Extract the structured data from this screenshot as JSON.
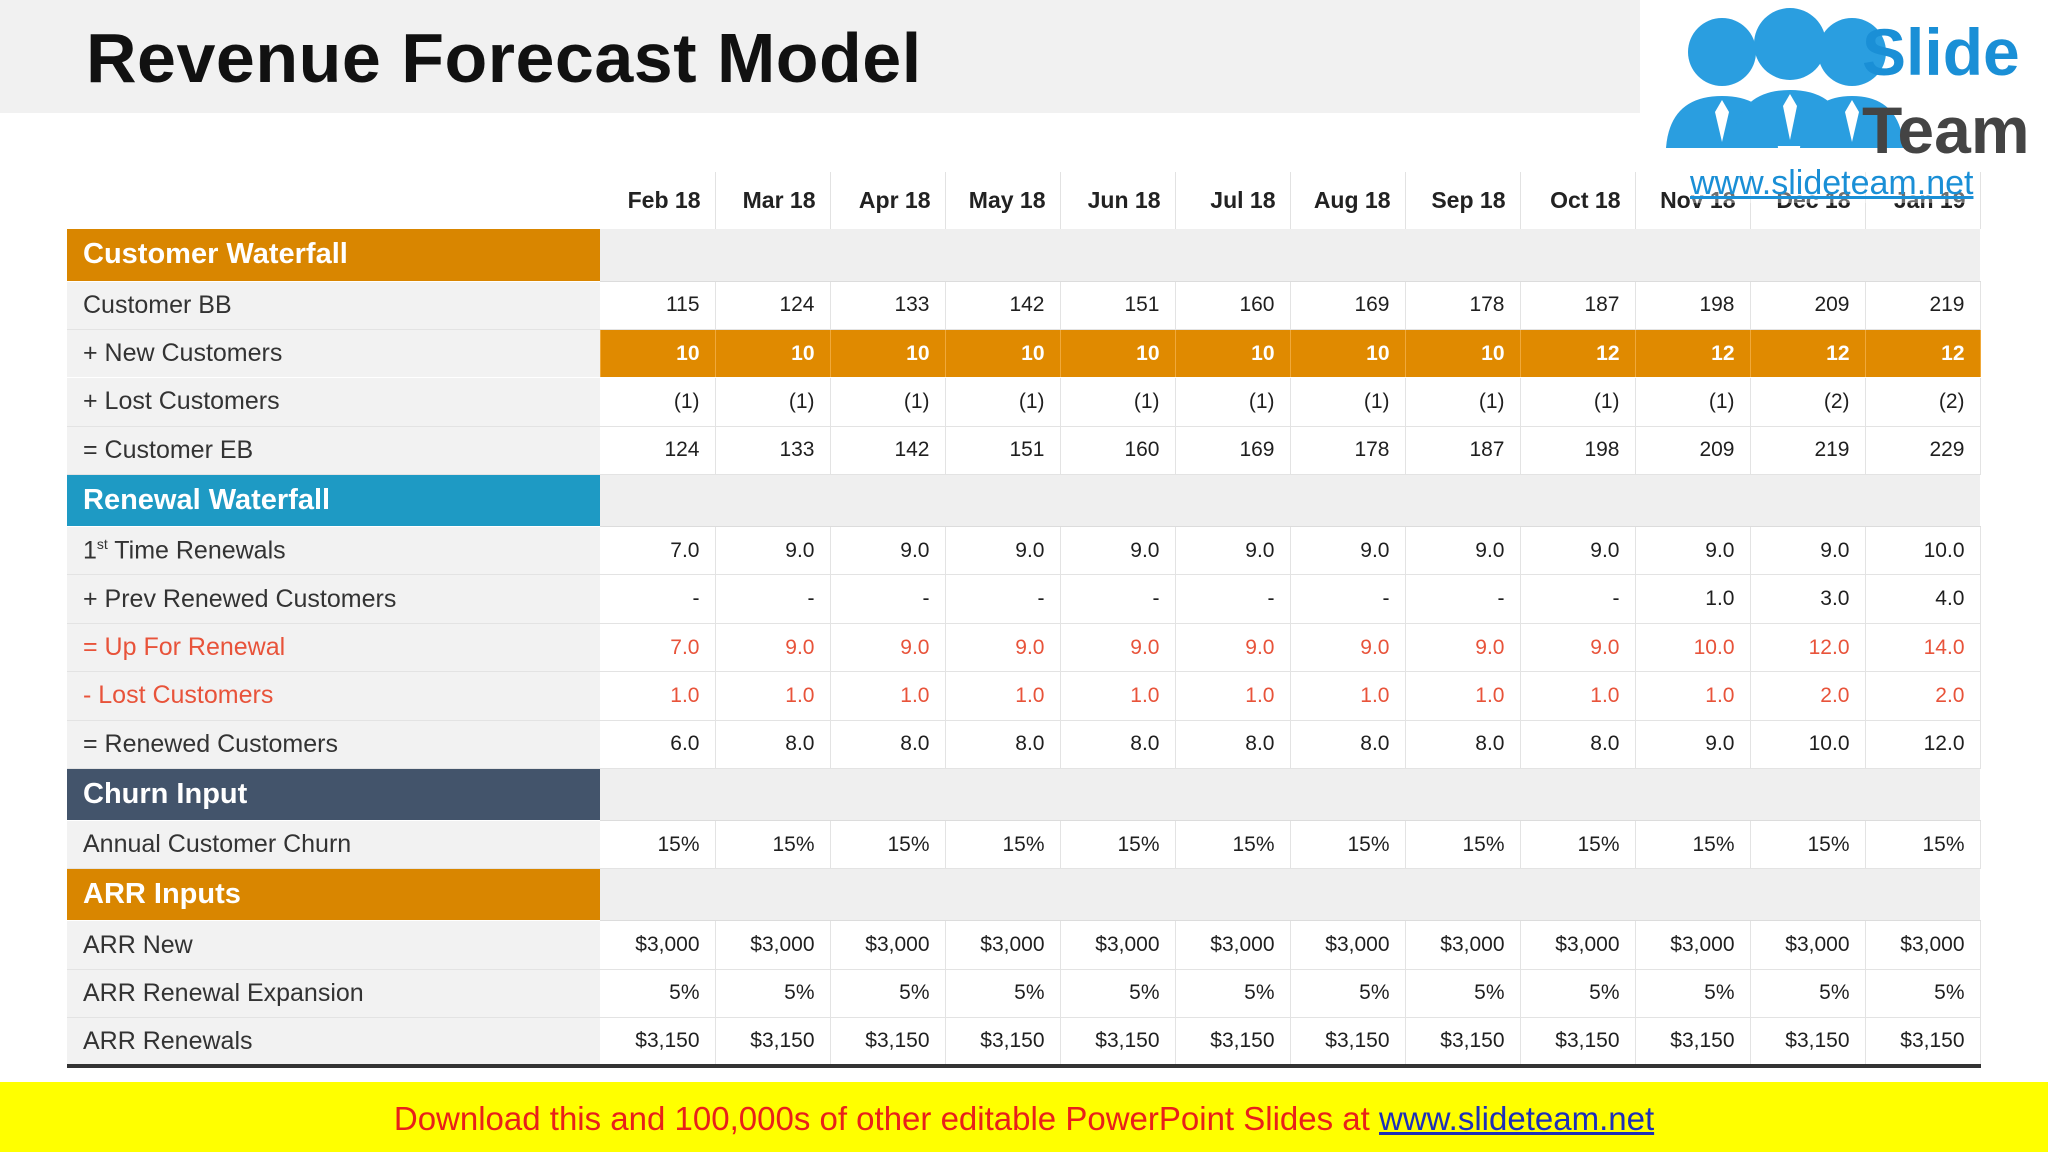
{
  "title": "Revenue Forecast Model",
  "logo": {
    "line1": "Slide",
    "line2": "Team",
    "url": "www.slideteam.net"
  },
  "months": [
    "Feb 18",
    "Mar 18",
    "Apr 18",
    "May 18",
    "Jun 18",
    "Jul 18",
    "Aug 18",
    "Sep 18",
    "Oct 18",
    "Nov 18",
    "Dec 18",
    "Jan 19"
  ],
  "sections": {
    "customer_waterfall": {
      "title": "Customer Waterfall",
      "color": "#d98600",
      "rows": {
        "customer_bb": {
          "label": "Customer BB",
          "values": [
            "115",
            "124",
            "133",
            "142",
            "151",
            "160",
            "169",
            "178",
            "187",
            "198",
            "209",
            "219"
          ]
        },
        "new_customers": {
          "label": "+ New Customers",
          "values": [
            "10",
            "10",
            "10",
            "10",
            "10",
            "10",
            "10",
            "10",
            "12",
            "12",
            "12",
            "12"
          ]
        },
        "lost_customers": {
          "label": "+ Lost Customers",
          "values": [
            "(1)",
            "(1)",
            "(1)",
            "(1)",
            "(1)",
            "(1)",
            "(1)",
            "(1)",
            "(1)",
            "(1)",
            "(2)",
            "(2)"
          ]
        },
        "customer_eb": {
          "label": "= Customer EB",
          "values": [
            "124",
            "133",
            "142",
            "151",
            "160",
            "169",
            "178",
            "187",
            "198",
            "209",
            "219",
            "229"
          ]
        }
      }
    },
    "renewal_waterfall": {
      "title": "Renewal Waterfall",
      "color": "#1e9ac4",
      "rows": {
        "first_time_renewals": {
          "label_pre": "1",
          "label_sup": "st",
          "label_post": " Time Renewals",
          "values": [
            "7.0",
            "9.0",
            "9.0",
            "9.0",
            "9.0",
            "9.0",
            "9.0",
            "9.0",
            "9.0",
            "9.0",
            "9.0",
            "10.0"
          ]
        },
        "prev_renewed": {
          "label": "+ Prev Renewed Customers",
          "values": [
            "-",
            "-",
            "-",
            "-",
            "-",
            "-",
            "-",
            "-",
            "-",
            "1.0",
            "3.0",
            "4.0"
          ]
        },
        "up_for_renewal": {
          "label": "= Up For Renewal",
          "values": [
            "7.0",
            "9.0",
            "9.0",
            "9.0",
            "9.0",
            "9.0",
            "9.0",
            "9.0",
            "9.0",
            "10.0",
            "12.0",
            "14.0"
          ]
        },
        "lost_customers": {
          "label": "- Lost Customers",
          "values": [
            "1.0",
            "1.0",
            "1.0",
            "1.0",
            "1.0",
            "1.0",
            "1.0",
            "1.0",
            "1.0",
            "1.0",
            "2.0",
            "2.0"
          ]
        },
        "renewed_customers": {
          "label": "= Renewed Customers",
          "values": [
            "6.0",
            "8.0",
            "8.0",
            "8.0",
            "8.0",
            "8.0",
            "8.0",
            "8.0",
            "8.0",
            "9.0",
            "10.0",
            "12.0"
          ]
        }
      }
    },
    "churn_input": {
      "title": "Churn Input",
      "color": "#43546b",
      "rows": {
        "annual_churn": {
          "label": "Annual Customer Churn",
          "values": [
            "15%",
            "15%",
            "15%",
            "15%",
            "15%",
            "15%",
            "15%",
            "15%",
            "15%",
            "15%",
            "15%",
            "15%"
          ]
        }
      }
    },
    "arr_inputs": {
      "title": "ARR Inputs",
      "color": "#d98600",
      "rows": {
        "arr_new": {
          "label": "ARR New",
          "values": [
            "$3,000",
            "$3,000",
            "$3,000",
            "$3,000",
            "$3,000",
            "$3,000",
            "$3,000",
            "$3,000",
            "$3,000",
            "$3,000",
            "$3,000",
            "$3,000"
          ]
        },
        "arr_renewal_expansion": {
          "label": "ARR Renewal Expansion",
          "values": [
            "5%",
            "5%",
            "5%",
            "5%",
            "5%",
            "5%",
            "5%",
            "5%",
            "5%",
            "5%",
            "5%",
            "5%"
          ]
        },
        "arr_renewals": {
          "label": "ARR Renewals",
          "values": [
            "$3,150",
            "$3,150",
            "$3,150",
            "$3,150",
            "$3,150",
            "$3,150",
            "$3,150",
            "$3,150",
            "$3,150",
            "$3,150",
            "$3,150",
            "$3,150"
          ]
        }
      }
    }
  },
  "highlight_color": "#e08a00",
  "negative_color": "#e8533a",
  "banner": {
    "text": "Download this and 100,000s of other editable PowerPoint Slides at ",
    "link": "www.slideteam.net",
    "background": "#ffff00"
  }
}
